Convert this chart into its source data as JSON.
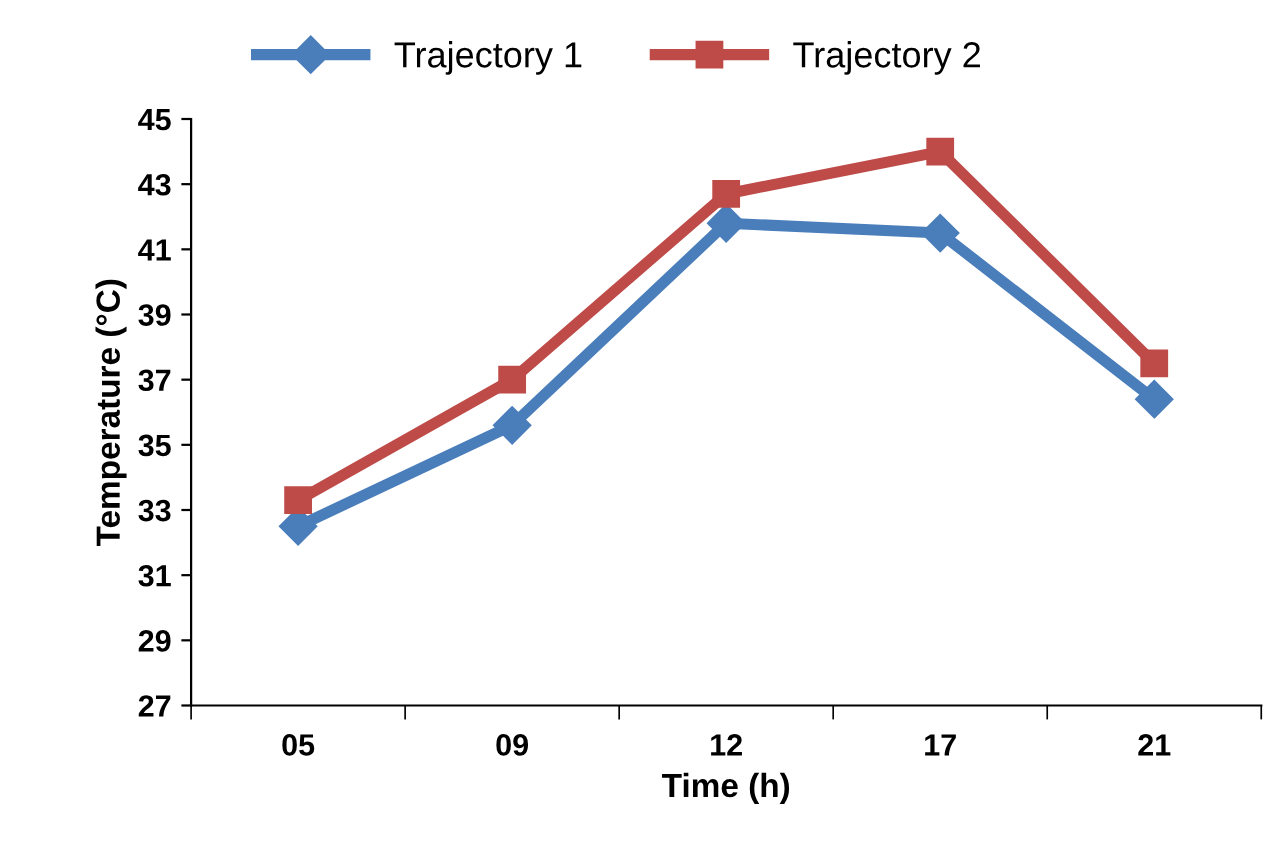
{
  "chart_data": {
    "type": "line",
    "xlabel": "Time (h)",
    "ylabel": "Temperature (°C)",
    "categories": [
      "05",
      "09",
      "12",
      "17",
      "21"
    ],
    "series": [
      {
        "name": "Trajectory 1",
        "color": "#4a7ebb",
        "marker": "diamond",
        "values": [
          32.5,
          35.6,
          41.8,
          41.5,
          36.4
        ]
      },
      {
        "name": "Trajectory 2",
        "color": "#be4b48",
        "marker": "square",
        "values": [
          33.3,
          37.0,
          42.7,
          44.0,
          37.5
        ]
      }
    ],
    "ylim": [
      27,
      45
    ],
    "yticks": [
      27,
      29,
      31,
      33,
      35,
      37,
      39,
      41,
      43,
      45
    ],
    "grid": false,
    "legend": "top",
    "line_style": "solid"
  }
}
